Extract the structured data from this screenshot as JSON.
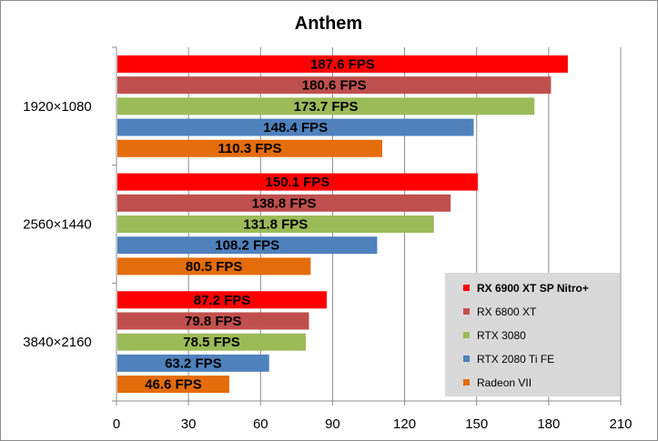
{
  "chart_data": {
    "type": "bar",
    "orientation": "horizontal",
    "title": "Anthem",
    "xlabel": "",
    "ylabel": "",
    "categories": [
      "1920×1080",
      "2560×1440",
      "3840×2160"
    ],
    "series": [
      {
        "name": "RX 6900 XT SP Nitro+",
        "color": "#ff0000",
        "values": [
          187.6,
          150.1,
          87.2
        ]
      },
      {
        "name": "RX 6800 XT",
        "color": "#c0504d",
        "values": [
          180.6,
          138.8,
          79.8
        ]
      },
      {
        "name": "RTX 3080",
        "color": "#9bbb59",
        "values": [
          173.7,
          131.8,
          78.5
        ]
      },
      {
        "name": "RTX 2080 Ti FE",
        "color": "#4f81bd",
        "values": [
          148.4,
          108.2,
          63.2
        ]
      },
      {
        "name": "Radeon VII",
        "color": "#e46c0a",
        "values": [
          110.3,
          80.5,
          46.6
        ]
      }
    ],
    "value_suffix": " FPS",
    "xlim": [
      0,
      210
    ],
    "xticks": [
      0,
      30,
      60,
      90,
      120,
      150,
      180,
      210
    ],
    "grid": true,
    "legend": "bottom-right"
  }
}
